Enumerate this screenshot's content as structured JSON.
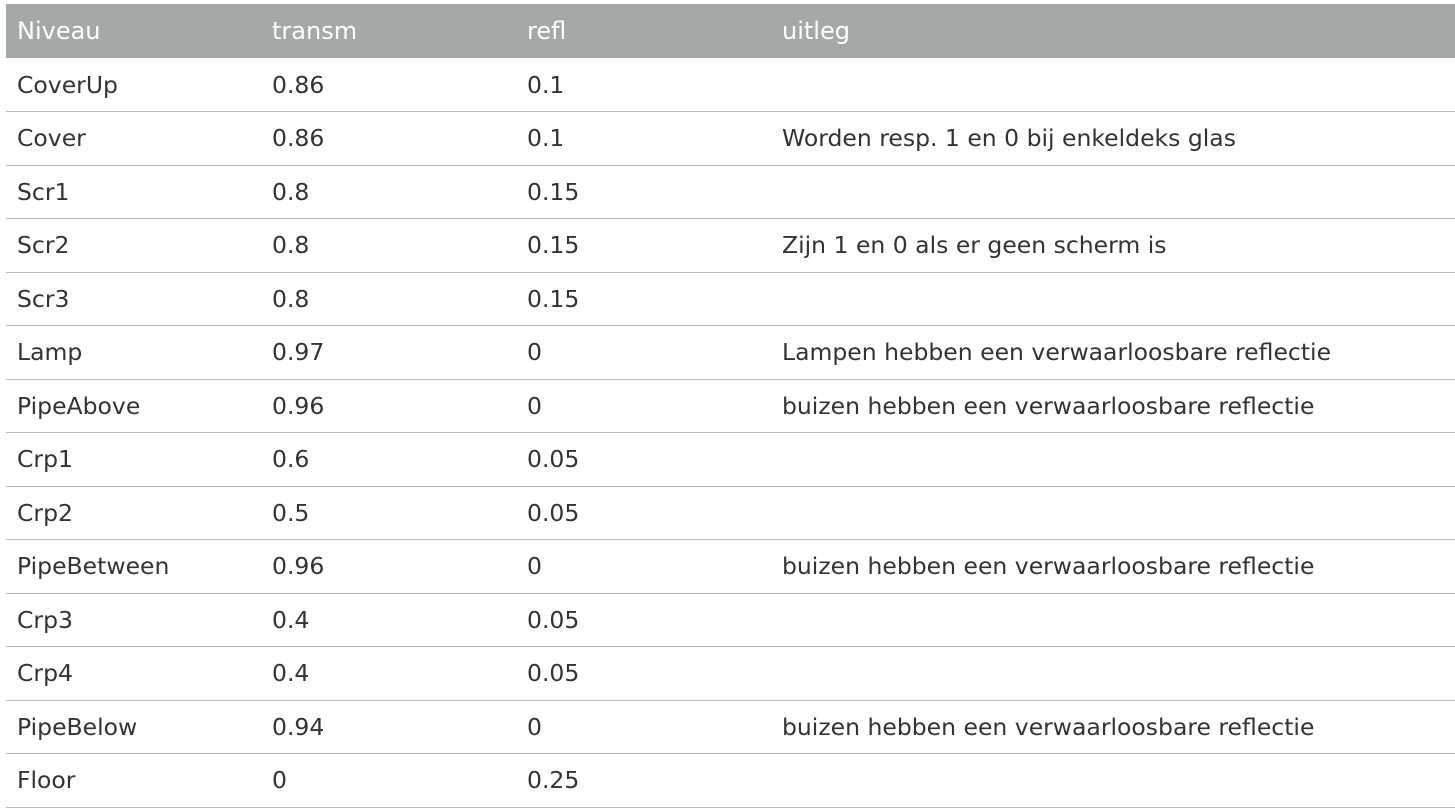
{
  "table": {
    "headers": [
      "Niveau",
      "transm",
      "refl",
      "uitleg"
    ],
    "rows": [
      [
        "CoverUp",
        "0.86",
        "0.1",
        ""
      ],
      [
        "Cover",
        "0.86",
        "0.1",
        "Worden resp. 1 en 0 bij enkeldeks glas"
      ],
      [
        "Scr1",
        "0.8",
        "0.15",
        ""
      ],
      [
        "Scr2",
        "0.8",
        "0.15",
        "Zijn 1 en 0 als er geen scherm is"
      ],
      [
        "Scr3",
        "0.8",
        "0.15",
        ""
      ],
      [
        "Lamp",
        "0.97",
        "0",
        "Lampen hebben een verwaarloosbare reflectie"
      ],
      [
        "PipeAbove",
        "0.96",
        "0",
        "buizen hebben een verwaarloosbare reflectie"
      ],
      [
        "Crp1",
        "0.6",
        "0.05",
        ""
      ],
      [
        "Crp2",
        "0.5",
        "0.05",
        ""
      ],
      [
        "PipeBetween",
        "0.96",
        "0",
        "buizen hebben een verwaarloosbare reflectie"
      ],
      [
        "Crp3",
        "0.4",
        "0.05",
        ""
      ],
      [
        "Crp4",
        "0.4",
        "0.05",
        ""
      ],
      [
        "PipeBelow",
        "0.94",
        "0",
        "buizen hebben een verwaarloosbare reflectie"
      ],
      [
        "Floor",
        "0",
        "0.25",
        ""
      ]
    ]
  },
  "colors": {
    "header_bg": "#a5a8a8",
    "header_text": "#ffffff",
    "row_divider": "#b8b8b8",
    "body_text": "#333333"
  }
}
